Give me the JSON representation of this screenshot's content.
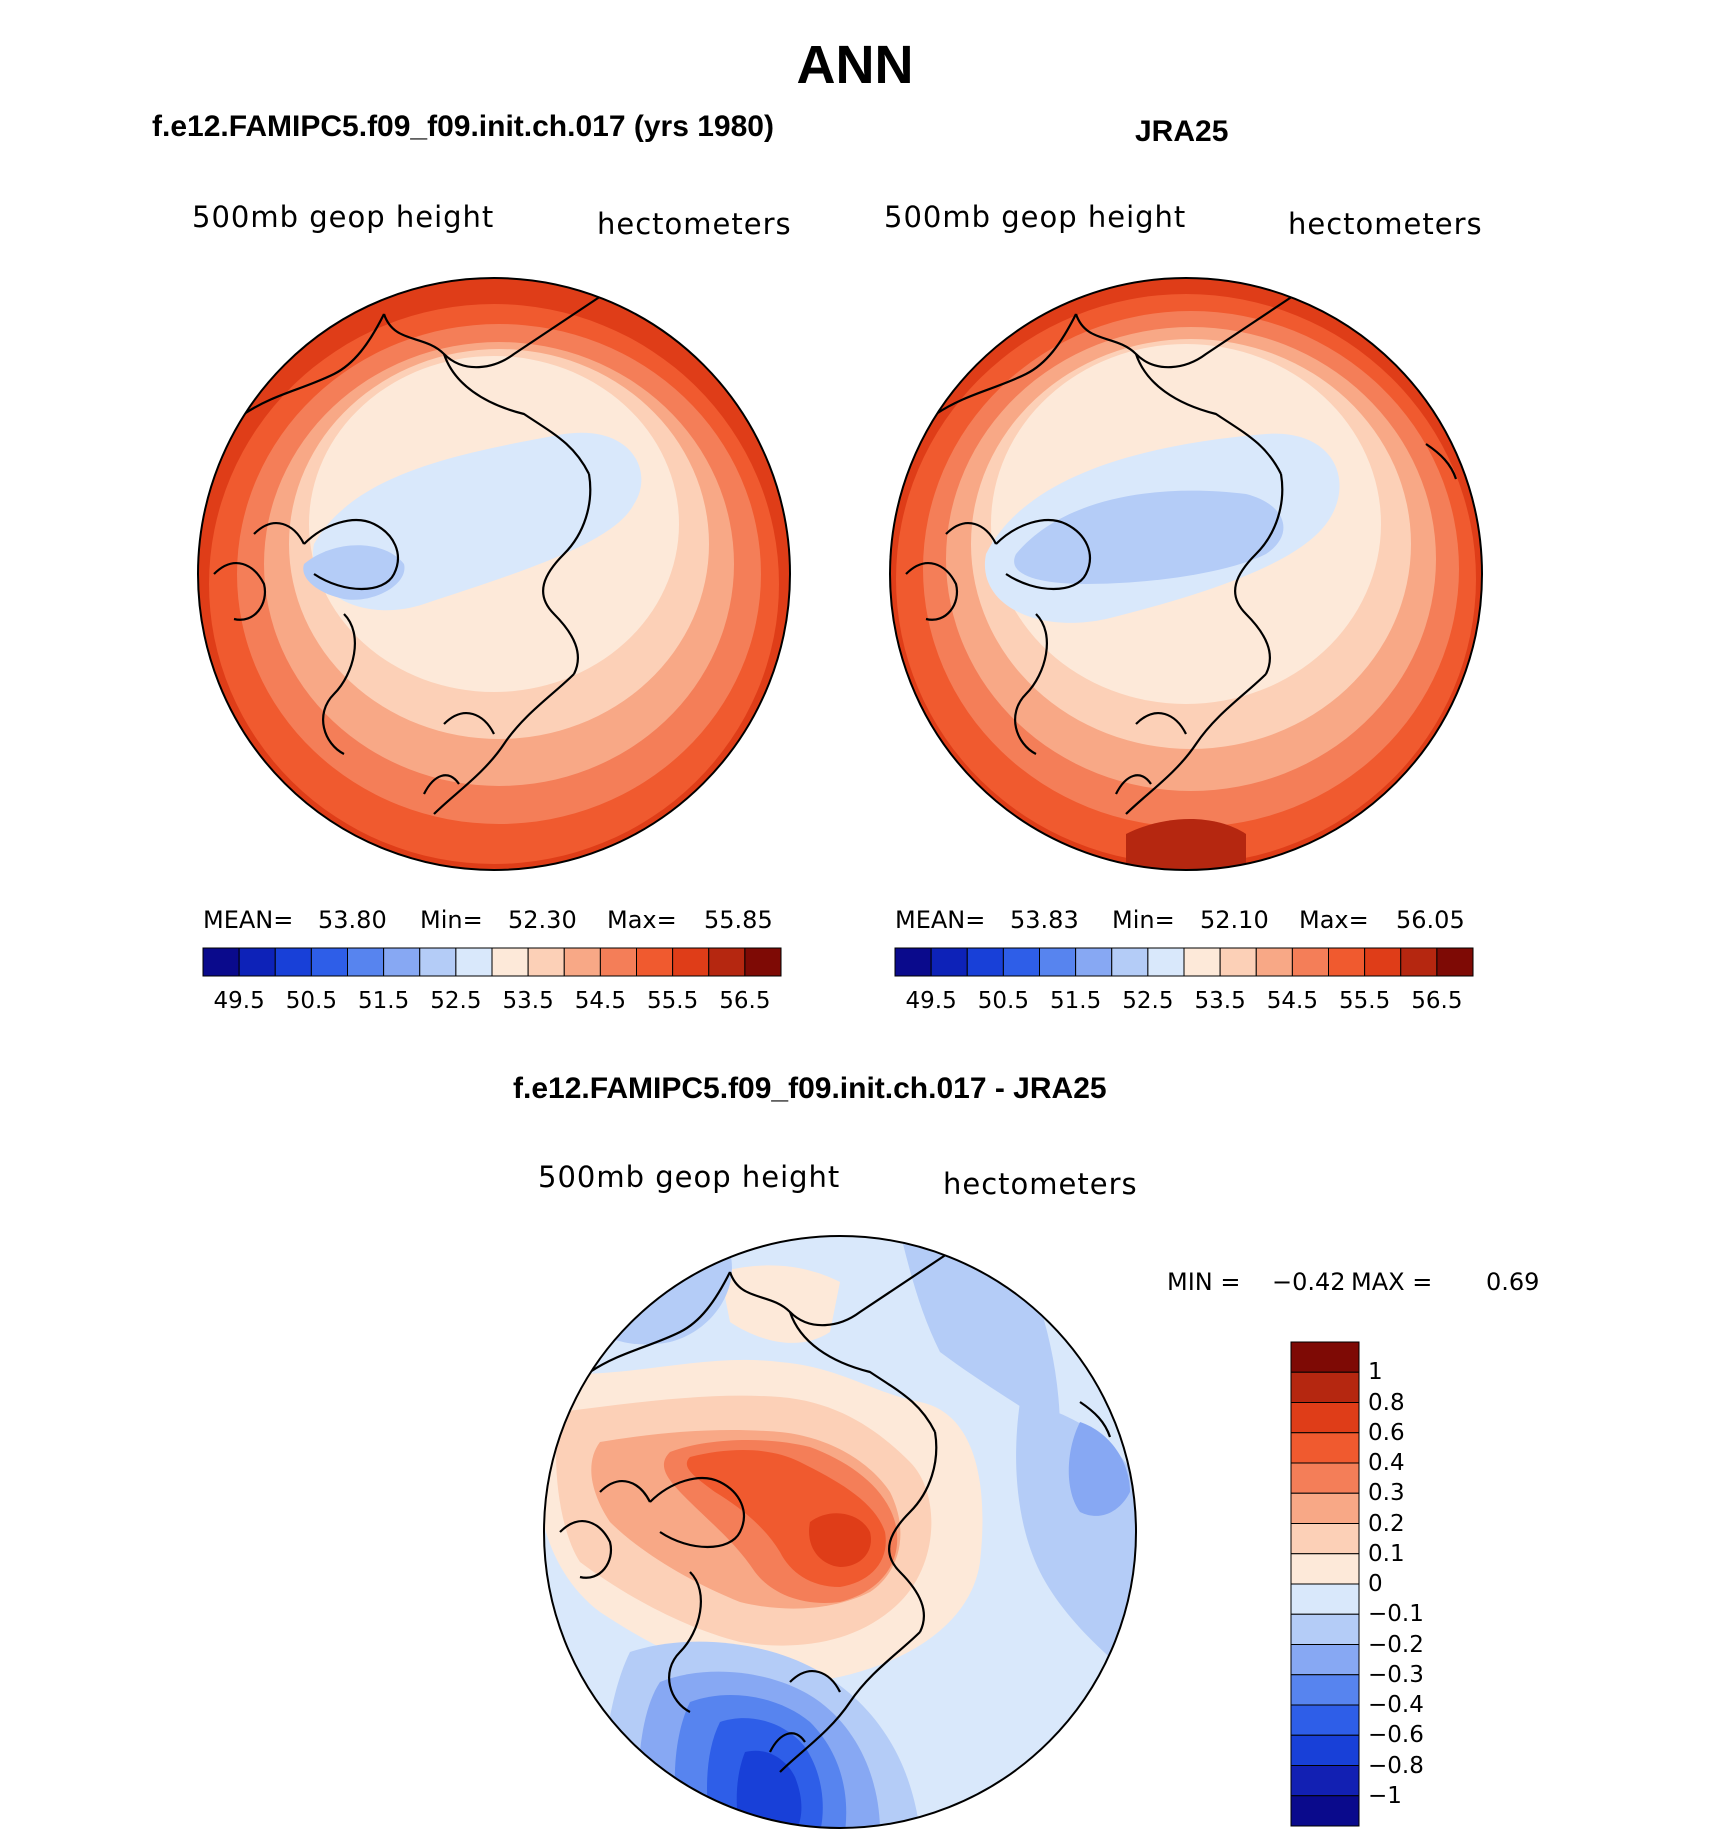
{
  "figure": {
    "title": "ANN"
  },
  "colors": {
    "palette": [
      "#0a0a8c",
      "#0d22b8",
      "#1840d8",
      "#2e5ee8",
      "#5784ef",
      "#87a8f3",
      "#b4ccf7",
      "#d9e8fb",
      "#fde9d9",
      "#fcd0b7",
      "#f8a886",
      "#f47e58",
      "#f05a2f",
      "#df3d18",
      "#b52710",
      "#7e0a05"
    ],
    "diff_palette": [
      "#0a0a8c",
      "#1220b3",
      "#1840d8",
      "#2e5ee8",
      "#5784ef",
      "#87a8f3",
      "#b4ccf7",
      "#d9e8fb",
      "#fde9d9",
      "#fcd0b7",
      "#f8a886",
      "#f47e58",
      "#f05a2f",
      "#df3d18",
      "#b52710",
      "#7e0a05"
    ]
  },
  "panels": [
    {
      "id": "model",
      "title": "f.e12.FAMIPC5.f09_f09.init.ch.017 (yrs 1980)",
      "variable": "500mb geop height",
      "units": "hectometers",
      "stats": {
        "mean_label": "MEAN=",
        "mean": "53.80",
        "min_label": "Min=",
        "min": "52.30",
        "max_label": "Max=",
        "max": "55.85"
      }
    },
    {
      "id": "obs",
      "title": "JRA25",
      "variable": "500mb geop height",
      "units": "hectometers",
      "stats": {
        "mean_label": "MEAN=",
        "mean": "53.83",
        "min_label": "Min=",
        "min": "52.10",
        "max_label": "Max=",
        "max": "56.05"
      }
    }
  ],
  "colorbar_ticks": [
    "49.5",
    "50.5",
    "51.5",
    "52.5",
    "53.5",
    "54.5",
    "55.5",
    "56.5"
  ],
  "diff": {
    "title": "f.e12.FAMIPC5.f09_f09.init.ch.017 - JRA25",
    "variable": "500mb geop height",
    "units": "hectometers",
    "min_label": "MIN =",
    "min": "−0.42",
    "max_label": "MAX =",
    "max": "0.69",
    "ticks": [
      "1",
      "0.8",
      "0.6",
      "0.4",
      "0.3",
      "0.2",
      "0.1",
      "0",
      "−0.1",
      "−0.2",
      "−0.3",
      "−0.4",
      "−0.6",
      "−0.8",
      "−1"
    ]
  }
}
